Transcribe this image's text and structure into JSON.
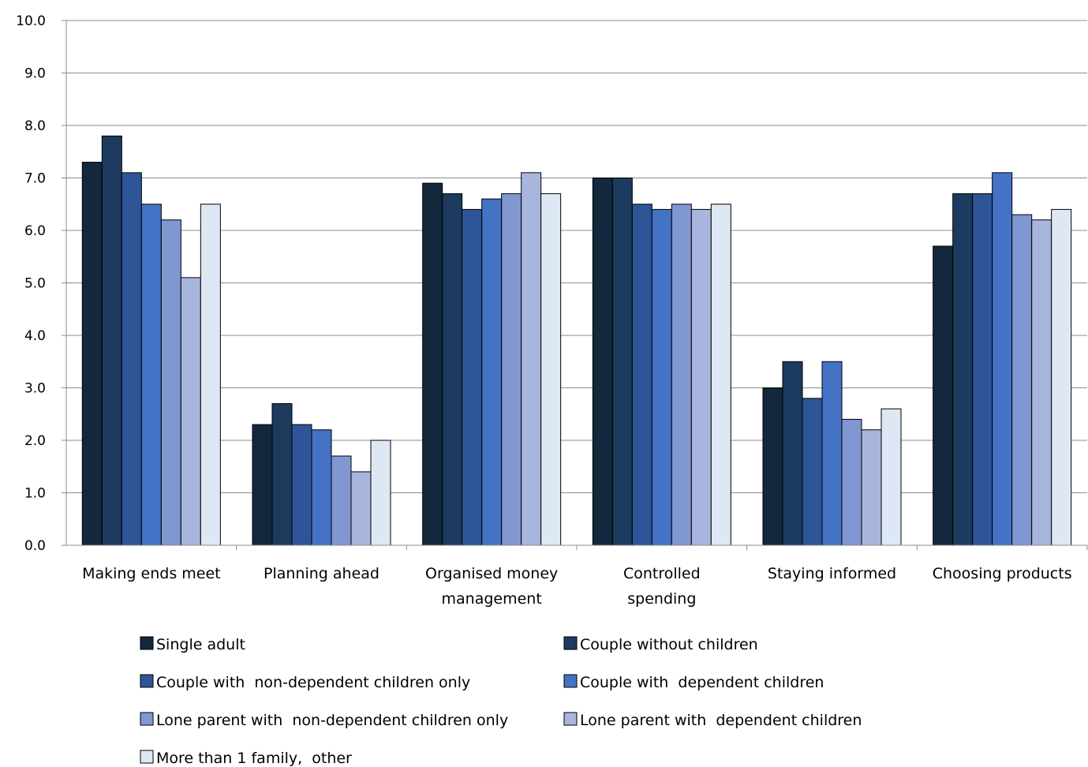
{
  "chart_data": {
    "type": "bar",
    "title": "",
    "xlabel": "",
    "ylabel": "",
    "ylim": [
      0,
      10
    ],
    "yticks": [
      "0.0",
      "1.0",
      "2.0",
      "3.0",
      "4.0",
      "5.0",
      "6.0",
      "7.0",
      "8.0",
      "9.0",
      "10.0"
    ],
    "grid": true,
    "legend_position": "bottom",
    "categories": [
      [
        "Making ends meet"
      ],
      [
        "Planning ahead"
      ],
      [
        "Organised money",
        "management"
      ],
      [
        "Controlled",
        "spending"
      ],
      [
        "Staying informed"
      ],
      [
        "Choosing products"
      ]
    ],
    "series": [
      {
        "name": "Single adult",
        "color": "#13273d",
        "values": [
          7.3,
          2.3,
          6.9,
          7.0,
          3.0,
          5.7
        ]
      },
      {
        "name": "Couple without children",
        "color": "#1d3a5f",
        "values": [
          7.8,
          2.7,
          6.7,
          7.0,
          3.5,
          6.7
        ]
      },
      {
        "name": "Couple with  non-dependent children only",
        "color": "#2e5597",
        "values": [
          7.1,
          2.3,
          6.4,
          6.5,
          2.8,
          6.7
        ]
      },
      {
        "name": "Couple with  dependent children",
        "color": "#4472c4",
        "values": [
          6.5,
          2.2,
          6.6,
          6.4,
          3.5,
          7.1
        ]
      },
      {
        "name": "Lone parent with  non-dependent children only",
        "color": "#8097d1",
        "values": [
          6.2,
          1.7,
          6.7,
          6.5,
          2.4,
          6.3
        ]
      },
      {
        "name": "Lone parent with  dependent children",
        "color": "#a8b5dc",
        "values": [
          5.1,
          1.4,
          7.1,
          6.4,
          2.2,
          6.2
        ]
      },
      {
        "name": "More than 1 family,  other",
        "color": "#dde8f4",
        "values": [
          6.5,
          2.0,
          6.7,
          6.5,
          2.6,
          6.4
        ]
      }
    ]
  }
}
